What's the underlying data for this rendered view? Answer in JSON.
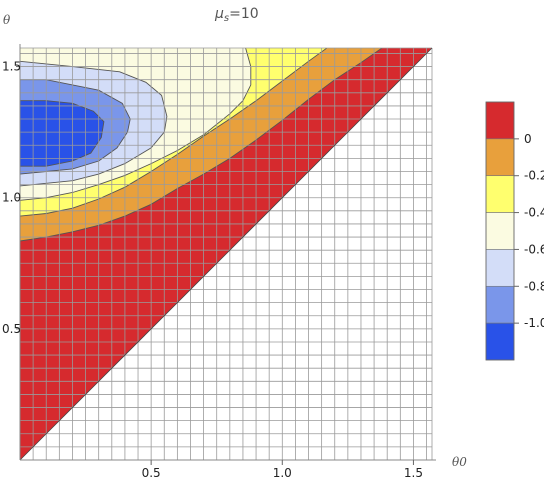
{
  "chart_data": {
    "type": "contour",
    "title": "μs=10",
    "title_main": "μ",
    "title_sub": "s",
    "title_rest": "=10",
    "xlabel": "θ0",
    "ylabel": "θ",
    "xlim": [
      0,
      1.5708
    ],
    "ylim": [
      0,
      1.5708
    ],
    "x_ticks": [
      0.5,
      1.0,
      1.5
    ],
    "x_tick_labels": [
      "0.5",
      "1.0",
      "1.5"
    ],
    "y_ticks": [
      0.5,
      1.0,
      1.5
    ],
    "y_tick_labels": [
      "0.5",
      "1.0",
      "1.5"
    ],
    "grid": true,
    "grid_step": 0.05,
    "region": "θ > θ0",
    "contour_levels": [
      -1.2,
      -1.0,
      -0.8,
      -0.6,
      -0.4,
      -0.2,
      0,
      0.2
    ],
    "legend": {
      "placement": "right",
      "labels": [
        "0",
        "-0.2",
        "-0.4",
        "-0.6",
        "-0.8",
        "-1.0"
      ],
      "label_values": [
        0,
        -0.2,
        -0.4,
        -0.6,
        -0.8,
        -1.0
      ]
    },
    "bands": [
      {
        "range": [
          0,
          0.2
        ],
        "color": "#d62a2e"
      },
      {
        "range": [
          -0.2,
          0
        ],
        "color": "#e8a03c"
      },
      {
        "range": [
          -0.4,
          -0.2
        ],
        "color": "#ffff6e"
      },
      {
        "range": [
          -0.6,
          -0.4
        ],
        "color": "#fbfbe1"
      },
      {
        "range": [
          -0.8,
          -0.6
        ],
        "color": "#d3ddf8"
      },
      {
        "range": [
          -1.0,
          -0.8
        ],
        "color": "#7a96ea"
      },
      {
        "range": [
          -1.2,
          -1.0
        ],
        "color": "#2952e8"
      }
    ],
    "contours": [
      {
        "level": 0,
        "points": [
          [
            0,
            0.835
          ],
          [
            0.1,
            0.85
          ],
          [
            0.2,
            0.87
          ],
          [
            0.3,
            0.895
          ],
          [
            0.4,
            0.93
          ],
          [
            0.5,
            0.975
          ],
          [
            0.6,
            1.035
          ],
          [
            0.7,
            1.09
          ],
          [
            0.8,
            1.15
          ],
          [
            0.9,
            1.22
          ],
          [
            1.0,
            1.295
          ],
          [
            1.1,
            1.375
          ],
          [
            1.2,
            1.45
          ],
          [
            1.3,
            1.515
          ],
          [
            1.38,
            1.5708
          ]
        ]
      },
      {
        "level": -0.2,
        "points": [
          [
            0,
            0.93
          ],
          [
            0.1,
            0.94
          ],
          [
            0.2,
            0.96
          ],
          [
            0.3,
            0.995
          ],
          [
            0.4,
            1.04
          ],
          [
            0.5,
            1.1
          ],
          [
            0.6,
            1.165
          ],
          [
            0.7,
            1.235
          ],
          [
            0.8,
            1.3
          ],
          [
            0.9,
            1.37
          ],
          [
            1.0,
            1.445
          ],
          [
            1.1,
            1.52
          ],
          [
            1.17,
            1.5708
          ]
        ]
      },
      {
        "level": -0.4,
        "points": [
          [
            0,
            0.99
          ],
          [
            0.1,
            1.0
          ],
          [
            0.2,
            1.02
          ],
          [
            0.3,
            1.05
          ],
          [
            0.4,
            1.085
          ],
          [
            0.5,
            1.13
          ],
          [
            0.6,
            1.18
          ],
          [
            0.7,
            1.24
          ],
          [
            0.8,
            1.32
          ],
          [
            0.85,
            1.37
          ],
          [
            0.88,
            1.43
          ],
          [
            0.88,
            1.5
          ],
          [
            0.86,
            1.5708
          ]
        ]
      },
      {
        "level": -0.6,
        "points": [
          [
            0,
            1.045
          ],
          [
            0.1,
            1.055
          ],
          [
            0.2,
            1.065
          ],
          [
            0.3,
            1.09
          ],
          [
            0.4,
            1.13
          ],
          [
            0.5,
            1.19
          ],
          [
            0.55,
            1.25
          ],
          [
            0.56,
            1.31
          ],
          [
            0.54,
            1.39
          ],
          [
            0.48,
            1.44
          ],
          [
            0.38,
            1.48
          ],
          [
            0.2,
            1.5
          ],
          [
            0,
            1.52
          ]
        ]
      },
      {
        "level": -0.8,
        "points": [
          [
            0,
            1.09
          ],
          [
            0.1,
            1.1
          ],
          [
            0.2,
            1.11
          ],
          [
            0.3,
            1.14
          ],
          [
            0.37,
            1.19
          ],
          [
            0.41,
            1.25
          ],
          [
            0.42,
            1.3
          ],
          [
            0.39,
            1.36
          ],
          [
            0.3,
            1.41
          ],
          [
            0.2,
            1.43
          ],
          [
            0.1,
            1.45
          ],
          [
            0,
            1.45
          ]
        ]
      },
      {
        "level": -1.0,
        "points": [
          [
            0,
            1.12
          ],
          [
            0.1,
            1.12
          ],
          [
            0.2,
            1.14
          ],
          [
            0.27,
            1.17
          ],
          [
            0.31,
            1.23
          ],
          [
            0.32,
            1.29
          ],
          [
            0.28,
            1.33
          ],
          [
            0.2,
            1.36
          ],
          [
            0.1,
            1.37
          ],
          [
            0,
            1.37
          ]
        ]
      }
    ]
  }
}
